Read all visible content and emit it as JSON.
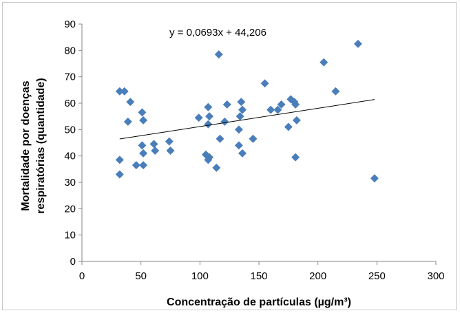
{
  "chart_data": {
    "type": "scatter",
    "xlabel": "Concentração de partículas (µg/m³)",
    "ylabel_lines": [
      "Mortalidade por doenças",
      "respiratórias (quantidade)"
    ],
    "trendline_label": "y = 0,0693x + 44,206",
    "trendline": {
      "slope": 0.0693,
      "intercept": 44.206,
      "x_range": [
        32,
        248
      ]
    },
    "xlim": [
      0,
      300
    ],
    "ylim": [
      0,
      90
    ],
    "x_ticks": [
      "0",
      "50",
      "100",
      "150",
      "200",
      "250",
      "300"
    ],
    "y_ticks": [
      "0",
      "10",
      "20",
      "30",
      "40",
      "50",
      "60",
      "70",
      "80",
      "90"
    ],
    "grid": false,
    "legend": "none",
    "marker_color": "#4a7ebb",
    "points": [
      {
        "x": 32,
        "y": 64.5
      },
      {
        "x": 36,
        "y": 64.5
      },
      {
        "x": 32,
        "y": 38.5
      },
      {
        "x": 32,
        "y": 33
      },
      {
        "x": 39,
        "y": 53
      },
      {
        "x": 41,
        "y": 60.5
      },
      {
        "x": 46,
        "y": 36.5
      },
      {
        "x": 51,
        "y": 56.5
      },
      {
        "x": 52,
        "y": 53.5
      },
      {
        "x": 51,
        "y": 44
      },
      {
        "x": 52,
        "y": 41
      },
      {
        "x": 52,
        "y": 36.5
      },
      {
        "x": 61,
        "y": 44.5
      },
      {
        "x": 62,
        "y": 42
      },
      {
        "x": 74,
        "y": 45.5
      },
      {
        "x": 75,
        "y": 42
      },
      {
        "x": 99,
        "y": 54.5
      },
      {
        "x": 105,
        "y": 40.5
      },
      {
        "x": 107,
        "y": 52
      },
      {
        "x": 107,
        "y": 58.5
      },
      {
        "x": 108,
        "y": 55
      },
      {
        "x": 107,
        "y": 38.5
      },
      {
        "x": 108,
        "y": 39.5
      },
      {
        "x": 114,
        "y": 35.5
      },
      {
        "x": 116,
        "y": 78.5
      },
      {
        "x": 117,
        "y": 46.5
      },
      {
        "x": 121,
        "y": 53
      },
      {
        "x": 123,
        "y": 59.5
      },
      {
        "x": 133,
        "y": 50
      },
      {
        "x": 133,
        "y": 44
      },
      {
        "x": 134,
        "y": 55
      },
      {
        "x": 135,
        "y": 60.5
      },
      {
        "x": 136,
        "y": 57.5
      },
      {
        "x": 136,
        "y": 41
      },
      {
        "x": 145,
        "y": 46.5
      },
      {
        "x": 155,
        "y": 67.5
      },
      {
        "x": 160,
        "y": 57.5
      },
      {
        "x": 166,
        "y": 57.5
      },
      {
        "x": 169,
        "y": 59.5
      },
      {
        "x": 175,
        "y": 51
      },
      {
        "x": 177,
        "y": 61.5
      },
      {
        "x": 180,
        "y": 60.5
      },
      {
        "x": 181,
        "y": 59.5
      },
      {
        "x": 182,
        "y": 53.5
      },
      {
        "x": 181,
        "y": 39.5
      },
      {
        "x": 205,
        "y": 75.5
      },
      {
        "x": 215,
        "y": 64.5
      },
      {
        "x": 234,
        "y": 82.5
      },
      {
        "x": 248,
        "y": 31.5
      }
    ]
  }
}
